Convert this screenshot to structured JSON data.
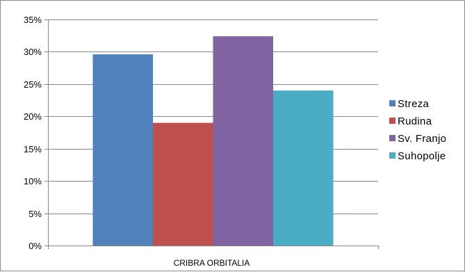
{
  "chart_data": {
    "type": "bar",
    "categories": [
      "CRIBRA ORBITALIA"
    ],
    "series": [
      {
        "name": "Streza",
        "values": [
          29.6
        ],
        "color": "#4f81bd"
      },
      {
        "name": "Rudina",
        "values": [
          19.0
        ],
        "color": "#c0504d"
      },
      {
        "name": "Sv. Franjo",
        "values": [
          32.4
        ],
        "color": "#8064a2"
      },
      {
        "name": "Suhopolje",
        "values": [
          24.0
        ],
        "color": "#4bacc6"
      }
    ],
    "y_unit": "%",
    "ylim": [
      0,
      35
    ],
    "yticks": [
      "0%",
      "5%",
      "10%",
      "15%",
      "20%",
      "25%",
      "30%",
      "35%"
    ],
    "title": "",
    "xlabel": "",
    "ylabel": "",
    "grid": "horizontal",
    "legend": "right"
  }
}
